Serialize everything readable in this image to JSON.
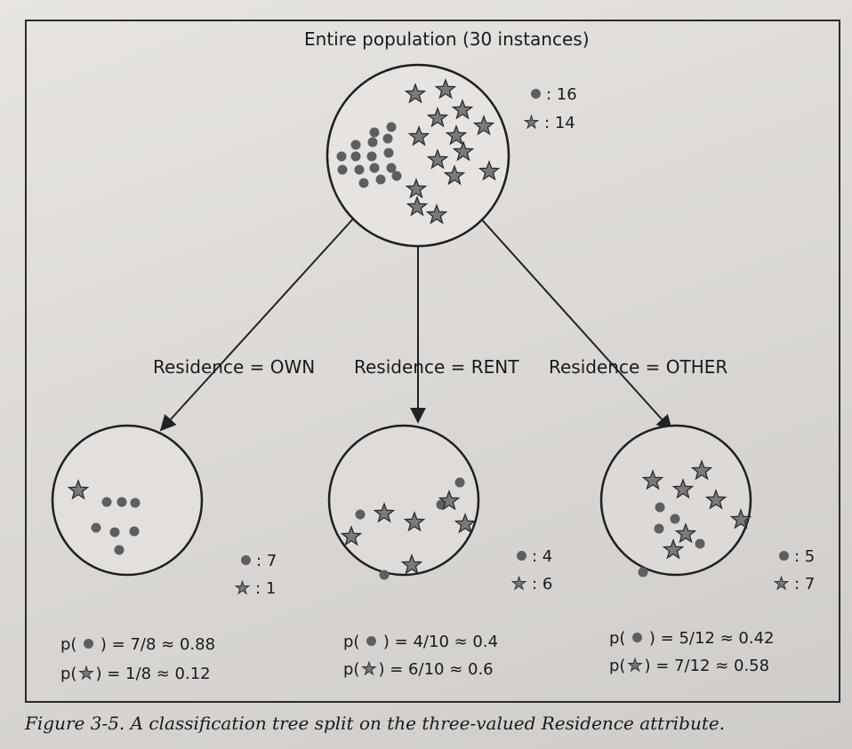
{
  "root": {
    "title": "Entire population (30 instances)",
    "dot_count": ": 16",
    "star_count": ": 14"
  },
  "branches": [
    {
      "edge_label": "Residence = OWN",
      "dot_count": ": 7",
      "star_count": ": 1",
      "p_dot_prefix": "p(",
      "p_dot_suffix": ") = 7/8 ≈ 0.88",
      "p_star_prefix": "p(",
      "p_star_suffix": ") = 1/8 ≈ 0.12"
    },
    {
      "edge_label": "Residence = RENT",
      "dot_count": ": 4",
      "star_count": ": 6",
      "p_dot_prefix": "p(",
      "p_dot_suffix": ") = 4/10 ≈ 0.4",
      "p_star_prefix": "p(",
      "p_star_suffix": ") = 6/10 ≈ 0.6"
    },
    {
      "edge_label": "Residence = OTHER",
      "dot_count": ": 5",
      "star_count": ": 7",
      "p_dot_prefix": "p(",
      "p_dot_suffix": ") = 5/12 ≈ 0.42",
      "p_star_prefix": "p(",
      "p_star_suffix": ") = 7/12 ≈ 0.58"
    }
  ],
  "caption": "Figure 3-5. A classification tree split on the three-valued Residence attribute.",
  "colors": {
    "dot": "#5e5e5e",
    "star": "#7a7a7a",
    "line": "#222222"
  }
}
